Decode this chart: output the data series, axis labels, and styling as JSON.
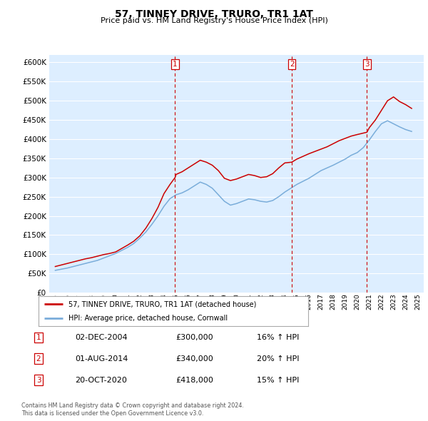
{
  "title": "57, TINNEY DRIVE, TRURO, TR1 1AT",
  "subtitle": "Price paid vs. HM Land Registry's House Price Index (HPI)",
  "property_label": "57, TINNEY DRIVE, TRURO, TR1 1AT (detached house)",
  "hpi_label": "HPI: Average price, detached house, Cornwall",
  "footer1": "Contains HM Land Registry data © Crown copyright and database right 2024.",
  "footer2": "This data is licensed under the Open Government Licence v3.0.",
  "sales": [
    {
      "num": 1,
      "date": "02-DEC-2004",
      "price": 300000,
      "pct": "16%",
      "dir": "↑",
      "x_year": 2004.92
    },
    {
      "num": 2,
      "date": "01-AUG-2014",
      "price": 340000,
      "pct": "20%",
      "dir": "↑",
      "x_year": 2014.58
    },
    {
      "num": 3,
      "date": "20-OCT-2020",
      "price": 418000,
      "pct": "15%",
      "dir": "↑",
      "x_year": 2020.8
    }
  ],
  "ylim": [
    0,
    620000
  ],
  "yticks": [
    0,
    50000,
    100000,
    150000,
    200000,
    250000,
    300000,
    350000,
    400000,
    450000,
    500000,
    550000,
    600000
  ],
  "xlim": [
    1994.5,
    2025.5
  ],
  "xticks": [
    1995,
    1996,
    1997,
    1998,
    1999,
    2000,
    2001,
    2002,
    2003,
    2004,
    2005,
    2006,
    2007,
    2008,
    2009,
    2010,
    2011,
    2012,
    2013,
    2014,
    2015,
    2016,
    2017,
    2018,
    2019,
    2020,
    2021,
    2022,
    2023,
    2024,
    2025
  ],
  "property_color": "#cc0000",
  "hpi_color": "#7aadda",
  "vline_color": "#cc0000",
  "plot_bg": "#ddeeff",
  "grid_color": "#ffffff",
  "property_x": [
    1995.0,
    1995.5,
    1996.0,
    1996.5,
    1997.0,
    1997.5,
    1998.0,
    1998.5,
    1999.0,
    1999.5,
    2000.0,
    2000.5,
    2001.0,
    2001.5,
    2002.0,
    2002.5,
    2003.0,
    2003.5,
    2004.0,
    2004.5,
    2004.92,
    2005.0,
    2005.5,
    2006.0,
    2006.5,
    2007.0,
    2007.5,
    2008.0,
    2008.5,
    2009.0,
    2009.5,
    2010.0,
    2010.5,
    2011.0,
    2011.5,
    2012.0,
    2012.5,
    2013.0,
    2013.5,
    2014.0,
    2014.58,
    2015.0,
    2015.5,
    2016.0,
    2016.5,
    2017.0,
    2017.5,
    2018.0,
    2018.5,
    2019.0,
    2019.5,
    2020.0,
    2020.8,
    2021.0,
    2021.5,
    2022.0,
    2022.5,
    2023.0,
    2023.5,
    2024.0,
    2024.5
  ],
  "property_y": [
    68000,
    72000,
    76000,
    80000,
    84000,
    88000,
    91000,
    95000,
    99000,
    102000,
    106000,
    115000,
    124000,
    134000,
    148000,
    168000,
    193000,
    222000,
    258000,
    282000,
    300000,
    308000,
    315000,
    325000,
    335000,
    345000,
    340000,
    332000,
    318000,
    298000,
    292000,
    296000,
    302000,
    308000,
    305000,
    300000,
    302000,
    310000,
    325000,
    338000,
    340000,
    348000,
    355000,
    362000,
    368000,
    374000,
    380000,
    388000,
    396000,
    402000,
    408000,
    412000,
    418000,
    430000,
    450000,
    475000,
    500000,
    510000,
    498000,
    490000,
    480000
  ],
  "hpi_x": [
    1995.0,
    1995.5,
    1996.0,
    1996.5,
    1997.0,
    1997.5,
    1998.0,
    1998.5,
    1999.0,
    1999.5,
    2000.0,
    2000.5,
    2001.0,
    2001.5,
    2002.0,
    2002.5,
    2003.0,
    2003.5,
    2004.0,
    2004.5,
    2005.0,
    2005.5,
    2006.0,
    2006.5,
    2007.0,
    2007.5,
    2008.0,
    2008.5,
    2009.0,
    2009.5,
    2010.0,
    2010.5,
    2011.0,
    2011.5,
    2012.0,
    2012.5,
    2013.0,
    2013.5,
    2014.0,
    2014.5,
    2015.0,
    2015.5,
    2016.0,
    2016.5,
    2017.0,
    2017.5,
    2018.0,
    2018.5,
    2019.0,
    2019.5,
    2020.0,
    2020.5,
    2021.0,
    2021.5,
    2022.0,
    2022.5,
    2023.0,
    2023.5,
    2024.0,
    2024.5
  ],
  "hpi_y": [
    58000,
    61000,
    64000,
    68000,
    72000,
    76000,
    80000,
    84000,
    90000,
    96000,
    102000,
    110000,
    118000,
    128000,
    142000,
    158000,
    178000,
    200000,
    225000,
    245000,
    255000,
    260000,
    268000,
    278000,
    288000,
    282000,
    272000,
    255000,
    238000,
    228000,
    232000,
    238000,
    244000,
    242000,
    238000,
    236000,
    240000,
    250000,
    262000,
    272000,
    282000,
    290000,
    298000,
    308000,
    318000,
    325000,
    332000,
    340000,
    348000,
    358000,
    365000,
    378000,
    398000,
    420000,
    440000,
    448000,
    440000,
    432000,
    425000,
    420000
  ]
}
